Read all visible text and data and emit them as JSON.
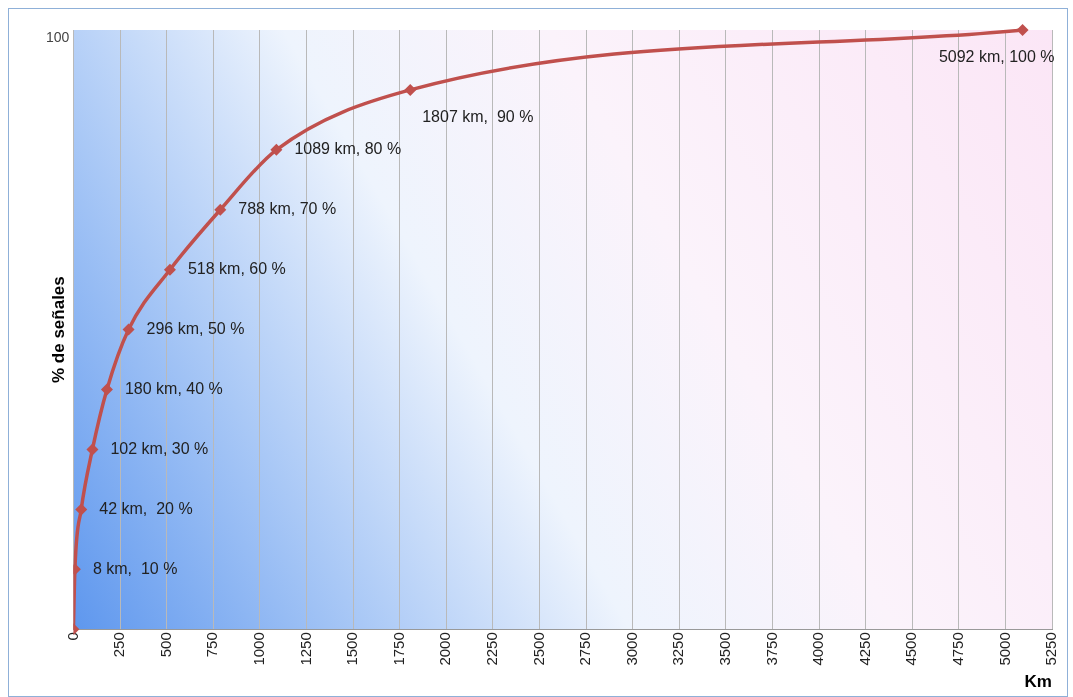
{
  "chart_data": {
    "type": "line",
    "xlabel": "Km",
    "ylabel": "% de señales",
    "x": [
      0,
      8,
      42,
      102,
      180,
      296,
      518,
      788,
      1089,
      1807,
      5092
    ],
    "series": [
      {
        "color": "#c0504d",
        "values": [
          0,
          10,
          20,
          30,
          40,
          50,
          60,
          70,
          80,
          90,
          100
        ],
        "value_labels": [
          null,
          "8 km,  10 %",
          "42 km,  20 %",
          "102 km, 30 %",
          "180 km, 40 %",
          "296 km, 50 %",
          "518 km, 60 %",
          "788 km, 70 %",
          "1089 km, 80 %",
          "1807 km,  90 %",
          "5092 km, 100 %"
        ]
      }
    ],
    "xlim": [
      0,
      5250
    ],
    "xticks": [
      0,
      250,
      500,
      750,
      1000,
      1250,
      1500,
      1750,
      2000,
      2250,
      2500,
      2750,
      3000,
      3250,
      3500,
      3750,
      4000,
      4250,
      4500,
      4750,
      5000,
      5250
    ],
    "annotations": [
      "100"
    ],
    "grid": "x",
    "legend": false,
    "marker": "diamond",
    "line_style": "solid"
  }
}
